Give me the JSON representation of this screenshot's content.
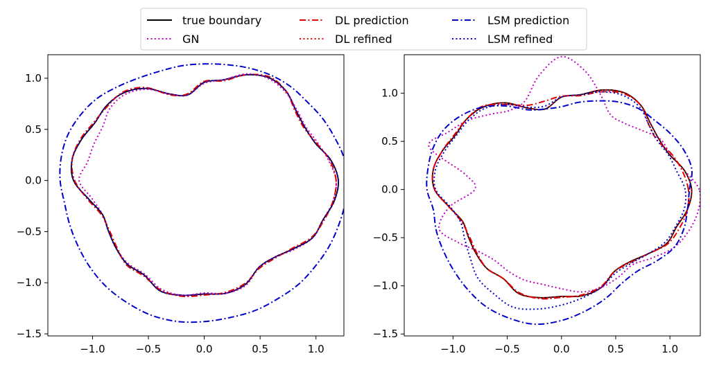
{
  "legend": {
    "location": "top-center",
    "columns": 3,
    "entries": [
      {
        "label": "true boundary",
        "color": "#000000",
        "style": "solid"
      },
      {
        "label": "GN",
        "color": "#bf00bf",
        "style": "dotted"
      },
      {
        "label": "DL prediction",
        "color": "#e00000",
        "style": "dashdot"
      },
      {
        "label": "DL refined",
        "color": "#e00000",
        "style": "dotted"
      },
      {
        "label": "LSM prediction",
        "color": "#0000cc",
        "style": "dashdot"
      },
      {
        "label": "LSM refined",
        "color": "#0000cc",
        "style": "dotted"
      }
    ]
  },
  "chart_data": [
    {
      "type": "line",
      "panel": "left",
      "grid": false,
      "xlim": [
        -1.4,
        1.25
      ],
      "ylim": [
        -1.52,
        1.23
      ],
      "xticks": [
        -1.0,
        -0.5,
        0.0,
        0.5,
        1.0
      ],
      "xtick_labels": [
        "−1.0",
        "−0.5",
        "0.0",
        "0.5",
        "1.0"
      ],
      "yticks": [
        -1.5,
        -1.0,
        -0.5,
        0.0,
        0.5,
        1.0
      ],
      "ytick_labels": [
        "−1.5",
        "−1.0",
        "−0.5",
        "0.0",
        "0.5",
        "1.0"
      ],
      "series": [
        {
          "name": "true boundary",
          "color": "#000000",
          "style": "solid",
          "r": [
            1.2,
            1.15,
            1.06,
            1.04,
            1.07,
            1.14,
            1.16,
            1.1,
            1.0,
            0.96,
            0.85,
            0.9,
            1.04,
            1.12,
            1.14,
            1.13,
            1.17,
            1.2,
            1.17,
            1.05,
            0.97,
            0.99,
            1.03,
            1.07,
            1.07,
            1.15,
            1.14,
            1.11,
            1.12,
            1.08,
            0.98,
            0.98,
            1.04,
            1.12,
            1.13,
            1.18
          ]
        },
        {
          "name": "GN",
          "color": "#bf00bf",
          "style": "dotted",
          "r": [
            1.18,
            1.13,
            1.08,
            1.05,
            1.08,
            1.13,
            1.15,
            1.11,
            1.0,
            0.95,
            0.85,
            0.9,
            1.03,
            1.1,
            1.1,
            1.05,
            1.05,
            1.06,
            1.12,
            1.02,
            0.97,
            0.99,
            1.03,
            1.06,
            1.06,
            1.13,
            1.14,
            1.1,
            1.12,
            1.09,
            0.98,
            0.98,
            1.05,
            1.12,
            1.13,
            1.17
          ]
        },
        {
          "name": "DL prediction",
          "color": "#e00000",
          "style": "dashdot",
          "r": [
            1.18,
            1.14,
            1.07,
            1.03,
            1.06,
            1.14,
            1.17,
            1.1,
            0.99,
            0.97,
            0.86,
            0.89,
            1.05,
            1.13,
            1.13,
            1.14,
            1.18,
            1.2,
            1.16,
            1.06,
            0.98,
            0.98,
            1.02,
            1.08,
            1.08,
            1.14,
            1.15,
            1.12,
            1.11,
            1.07,
            0.99,
            0.99,
            1.03,
            1.11,
            1.14,
            1.17
          ]
        },
        {
          "name": "DL refined",
          "color": "#e00000",
          "style": "dotted",
          "r": [
            1.2,
            1.15,
            1.06,
            1.04,
            1.07,
            1.14,
            1.16,
            1.1,
            1.0,
            0.96,
            0.85,
            0.9,
            1.04,
            1.12,
            1.14,
            1.13,
            1.17,
            1.2,
            1.17,
            1.05,
            0.97,
            0.99,
            1.03,
            1.07,
            1.07,
            1.15,
            1.14,
            1.11,
            1.12,
            1.08,
            0.98,
            0.98,
            1.04,
            1.12,
            1.13,
            1.18
          ]
        },
        {
          "name": "LSM prediction",
          "color": "#0000cc",
          "style": "dashdot",
          "r": [
            1.28,
            1.27,
            1.24,
            1.22,
            1.2,
            1.2,
            1.19,
            1.17,
            1.15,
            1.14,
            1.14,
            1.14,
            1.16,
            1.2,
            1.25,
            1.28,
            1.3,
            1.3,
            1.29,
            1.27,
            1.28,
            1.3,
            1.33,
            1.36,
            1.38,
            1.4,
            1.4,
            1.38,
            1.36,
            1.35,
            1.33,
            1.32,
            1.3,
            1.29,
            1.28,
            1.28
          ]
        },
        {
          "name": "LSM refined",
          "color": "#0000cc",
          "style": "dotted",
          "r": [
            1.2,
            1.15,
            1.06,
            1.04,
            1.07,
            1.14,
            1.16,
            1.1,
            1.0,
            0.96,
            0.85,
            0.9,
            1.04,
            1.12,
            1.14,
            1.13,
            1.17,
            1.2,
            1.17,
            1.05,
            0.97,
            0.99,
            1.03,
            1.07,
            1.07,
            1.15,
            1.14,
            1.11,
            1.12,
            1.08,
            0.98,
            0.98,
            1.04,
            1.12,
            1.13,
            1.18
          ]
        }
      ]
    },
    {
      "type": "line",
      "panel": "right",
      "grid": false,
      "xlim": [
        -1.45,
        1.28
      ],
      "ylim": [
        -1.52,
        1.4
      ],
      "xticks": [
        -1.0,
        -0.5,
        0.0,
        0.5,
        1.0
      ],
      "xtick_labels": [
        "−1.0",
        "−0.5",
        "0.0",
        "0.5",
        "1.0"
      ],
      "yticks": [
        -1.5,
        -1.0,
        -0.5,
        0.0,
        0.5,
        1.0
      ],
      "ytick_labels": [
        "−1.5",
        "−1.0",
        "−0.5",
        "0.0",
        "0.5",
        "1.0"
      ],
      "series": [
        {
          "name": "true boundary",
          "color": "#000000",
          "style": "solid",
          "r": [
            1.2,
            1.15,
            1.06,
            1.04,
            1.07,
            1.14,
            1.16,
            1.1,
            1.0,
            0.96,
            0.85,
            0.9,
            1.04,
            1.12,
            1.14,
            1.13,
            1.17,
            1.2,
            1.17,
            1.05,
            0.97,
            0.99,
            1.03,
            1.07,
            1.07,
            1.15,
            1.14,
            1.11,
            1.12,
            1.08,
            0.98,
            0.98,
            1.04,
            1.12,
            1.13,
            1.18
          ]
        },
        {
          "name": "GN",
          "color": "#bf00bf",
          "style": "dotted",
          "r": [
            1.27,
            1.15,
            1.07,
            1.05,
            0.96,
            0.9,
            0.9,
            1.05,
            1.25,
            1.38,
            1.2,
            0.98,
            0.95,
            1.02,
            1.12,
            1.2,
            1.3,
            0.9,
            0.8,
            1.05,
            1.2,
            1.1,
            1.0,
            0.96,
            0.98,
            1.0,
            1.0,
            1.03,
            1.08,
            1.08,
            1.05,
            1.02,
            1.1,
            1.2,
            1.25,
            1.28
          ]
        },
        {
          "name": "DL prediction",
          "color": "#e00000",
          "style": "dashdot",
          "r": [
            1.17,
            1.13,
            1.08,
            1.02,
            1.05,
            1.14,
            1.15,
            1.08,
            0.99,
            0.97,
            0.93,
            0.93,
            1.02,
            1.13,
            1.14,
            1.14,
            1.17,
            1.2,
            1.17,
            1.05,
            0.98,
            0.98,
            1.02,
            1.07,
            1.07,
            1.14,
            1.15,
            1.12,
            1.11,
            1.07,
            0.98,
            0.99,
            1.04,
            1.13,
            1.16,
            1.18
          ]
        },
        {
          "name": "DL refined",
          "color": "#e00000",
          "style": "dotted",
          "r": [
            1.2,
            1.15,
            1.06,
            1.04,
            1.07,
            1.14,
            1.16,
            1.1,
            1.0,
            0.96,
            0.85,
            0.9,
            1.04,
            1.12,
            1.14,
            1.13,
            1.17,
            1.2,
            1.17,
            1.05,
            0.97,
            0.99,
            1.03,
            1.07,
            1.07,
            1.15,
            1.14,
            1.11,
            1.12,
            1.08,
            0.98,
            0.98,
            1.04,
            1.12,
            1.13,
            1.18
          ]
        },
        {
          "name": "LSM prediction",
          "color": "#0000cc",
          "style": "dashdot",
          "r": [
            1.18,
            1.22,
            1.2,
            1.16,
            1.12,
            1.1,
            1.05,
            0.98,
            0.92,
            0.86,
            0.85,
            0.88,
            1.0,
            1.12,
            1.2,
            1.25,
            1.26,
            1.25,
            1.24,
            1.2,
            1.23,
            1.26,
            1.3,
            1.35,
            1.4,
            1.42,
            1.42,
            1.36,
            1.28,
            1.2,
            1.12,
            1.1,
            1.15,
            1.2,
            1.2,
            1.18
          ]
        },
        {
          "name": "LSM refined",
          "color": "#0000cc",
          "style": "dotted",
          "r": [
            1.14,
            1.08,
            1.05,
            1.02,
            1.05,
            1.12,
            1.13,
            1.08,
            1.0,
            0.96,
            0.88,
            0.91,
            1.02,
            1.1,
            1.12,
            1.12,
            1.15,
            1.18,
            1.16,
            1.04,
            0.99,
            1.03,
            1.1,
            1.2,
            1.25,
            1.3,
            1.26,
            1.2,
            1.14,
            1.08,
            1.0,
            1.0,
            1.04,
            1.1,
            1.12,
            1.15
          ]
        }
      ]
    }
  ]
}
